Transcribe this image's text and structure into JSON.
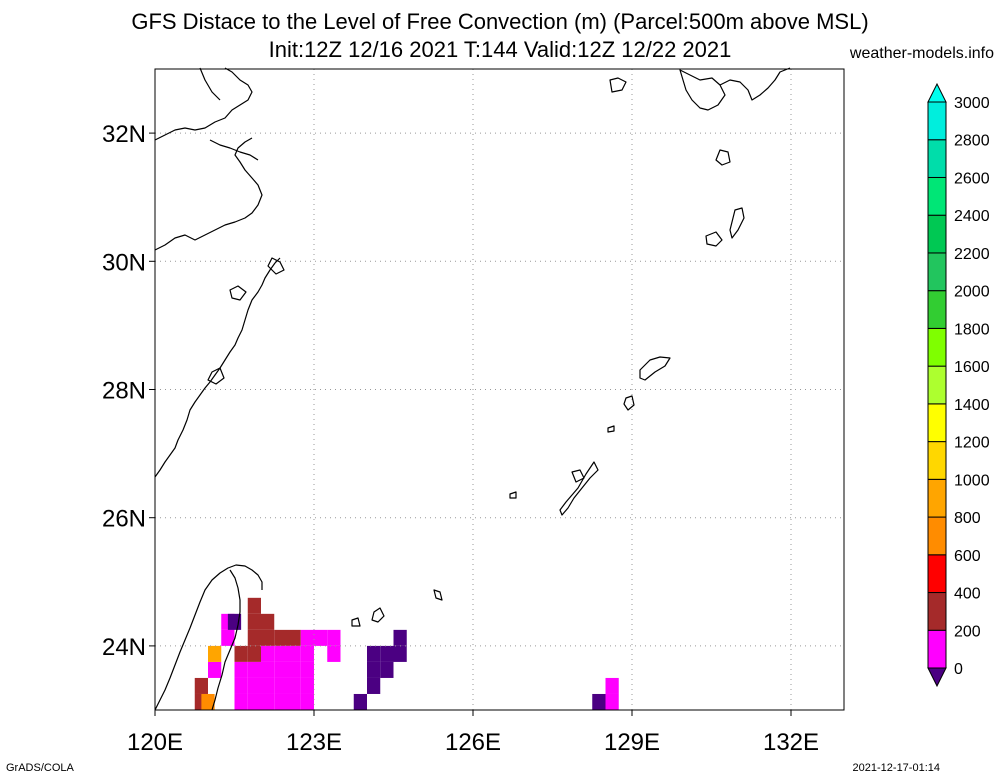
{
  "header": {
    "title_line1": "GFS Distace to the Level of Free Convection (m) (Parcel:500m above MSL)",
    "title_line2": "Init:12Z 12/16 2021 T:144 Valid:12Z 12/22 2021",
    "site": "weather-models.info"
  },
  "footer": {
    "left": "GrADS/COLA",
    "right": "2021-12-17-01:14"
  },
  "map": {
    "lon_range": [
      120,
      133
    ],
    "lat_range": [
      23,
      33
    ],
    "lon_ticks": [
      {
        "value": 120,
        "label": "120E"
      },
      {
        "value": 123,
        "label": "123E"
      },
      {
        "value": 126,
        "label": "126E"
      },
      {
        "value": 129,
        "label": "129E"
      },
      {
        "value": 132,
        "label": "132E"
      }
    ],
    "lat_ticks": [
      {
        "value": 24,
        "label": "24N"
      },
      {
        "value": 26,
        "label": "26N"
      },
      {
        "value": 28,
        "label": "28N"
      },
      {
        "value": 30,
        "label": "30N"
      },
      {
        "value": 32,
        "label": "32N"
      }
    ],
    "grid": "dotted"
  },
  "colorbar": {
    "levels": [
      "0",
      "200",
      "400",
      "600",
      "800",
      "1000",
      "1200",
      "1400",
      "1600",
      "1800",
      "2000",
      "2200",
      "2400",
      "2600",
      "2800",
      "3000"
    ],
    "colors": [
      "#4b0082",
      "#ff00ff",
      "#a52a2a",
      "#ff0000",
      "#ff8c00",
      "#ffa500",
      "#ffd700",
      "#ffff00",
      "#adff2f",
      "#7fff00",
      "#32cd32",
      "#22c55e",
      "#00c853",
      "#00e676",
      "#00ddaa",
      "#00eedd",
      "#00ffee"
    ]
  },
  "grid_data": {
    "cell_size_deg": 0.25,
    "cells": [
      {
        "lon": 120.75,
        "lat": 23.25,
        "color": "#a52a2a"
      },
      {
        "lon": 120.75,
        "lat": 23.0,
        "color": "#a52a2a"
      },
      {
        "lon": 120.875,
        "lat": 23.0,
        "color": "#ff8c00"
      },
      {
        "lon": 121.0,
        "lat": 23.5,
        "color": "#ff00ff"
      },
      {
        "lon": 121.0,
        "lat": 23.75,
        "color": "#ffa500"
      },
      {
        "lon": 121.25,
        "lat": 24.25,
        "color": "#ff00ff"
      },
      {
        "lon": 121.25,
        "lat": 24.0,
        "color": "#ff00ff"
      },
      {
        "lon": 121.375,
        "lat": 24.25,
        "color": "#4b0082"
      },
      {
        "lon": 121.75,
        "lat": 24.5,
        "color": "#a52a2a"
      },
      {
        "lon": 121.75,
        "lat": 24.25,
        "color": "#a52a2a"
      },
      {
        "lon": 122.0,
        "lat": 24.25,
        "color": "#a52a2a"
      },
      {
        "lon": 122.0,
        "lat": 24.0,
        "color": "#a52a2a"
      },
      {
        "lon": 122.25,
        "lat": 24.0,
        "color": "#a52a2a"
      },
      {
        "lon": 122.5,
        "lat": 24.0,
        "color": "#a52a2a"
      },
      {
        "lon": 121.75,
        "lat": 24.0,
        "color": "#a52a2a"
      },
      {
        "lon": 121.5,
        "lat": 23.75,
        "color": "#a52a2a"
      },
      {
        "lon": 121.75,
        "lat": 23.75,
        "color": "#a52a2a"
      },
      {
        "lon": 122.0,
        "lat": 23.75,
        "color": "#ff00ff"
      },
      {
        "lon": 122.25,
        "lat": 23.75,
        "color": "#ff00ff"
      },
      {
        "lon": 122.5,
        "lat": 23.75,
        "color": "#ff00ff"
      },
      {
        "lon": 122.75,
        "lat": 23.75,
        "color": "#ff00ff"
      },
      {
        "lon": 122.75,
        "lat": 24.0,
        "color": "#ff00ff"
      },
      {
        "lon": 123.0,
        "lat": 24.0,
        "color": "#ff00ff"
      },
      {
        "lon": 123.25,
        "lat": 24.0,
        "color": "#ff00ff"
      },
      {
        "lon": 123.25,
        "lat": 23.75,
        "color": "#ff00ff"
      },
      {
        "lon": 121.5,
        "lat": 23.5,
        "color": "#ff00ff"
      },
      {
        "lon": 121.75,
        "lat": 23.5,
        "color": "#ff00ff"
      },
      {
        "lon": 122.0,
        "lat": 23.5,
        "color": "#ff00ff"
      },
      {
        "lon": 122.25,
        "lat": 23.5,
        "color": "#ff00ff"
      },
      {
        "lon": 122.5,
        "lat": 23.5,
        "color": "#ff00ff"
      },
      {
        "lon": 122.75,
        "lat": 23.5,
        "color": "#ff00ff"
      },
      {
        "lon": 121.5,
        "lat": 23.25,
        "color": "#ff00ff"
      },
      {
        "lon": 121.75,
        "lat": 23.25,
        "color": "#ff00ff"
      },
      {
        "lon": 122.0,
        "lat": 23.25,
        "color": "#ff00ff"
      },
      {
        "lon": 122.25,
        "lat": 23.25,
        "color": "#ff00ff"
      },
      {
        "lon": 122.5,
        "lat": 23.25,
        "color": "#ff00ff"
      },
      {
        "lon": 122.75,
        "lat": 23.25,
        "color": "#ff00ff"
      },
      {
        "lon": 121.5,
        "lat": 23.0,
        "color": "#ff00ff"
      },
      {
        "lon": 121.75,
        "lat": 23.0,
        "color": "#ff00ff"
      },
      {
        "lon": 122.0,
        "lat": 23.0,
        "color": "#ff00ff"
      },
      {
        "lon": 122.25,
        "lat": 23.0,
        "color": "#ff00ff"
      },
      {
        "lon": 122.5,
        "lat": 23.0,
        "color": "#ff00ff"
      },
      {
        "lon": 122.75,
        "lat": 23.0,
        "color": "#ff00ff"
      },
      {
        "lon": 124.0,
        "lat": 23.75,
        "color": "#4b0082"
      },
      {
        "lon": 124.25,
        "lat": 23.75,
        "color": "#4b0082"
      },
      {
        "lon": 124.5,
        "lat": 23.75,
        "color": "#4b0082"
      },
      {
        "lon": 124.5,
        "lat": 24.0,
        "color": "#4b0082"
      },
      {
        "lon": 124.0,
        "lat": 23.5,
        "color": "#4b0082"
      },
      {
        "lon": 124.25,
        "lat": 23.5,
        "color": "#4b0082"
      },
      {
        "lon": 124.0,
        "lat": 23.25,
        "color": "#4b0082"
      },
      {
        "lon": 123.75,
        "lat": 23.0,
        "color": "#4b0082"
      },
      {
        "lon": 128.25,
        "lat": 23.0,
        "color": "#4b0082"
      },
      {
        "lon": 128.5,
        "lat": 23.25,
        "color": "#ff00ff"
      },
      {
        "lon": 128.5,
        "lat": 23.0,
        "color": "#ff00ff"
      }
    ]
  },
  "coastlines": [
    "M 155 477 L 160 470 L 165 462 L 170 455 L 175 448 L 178 440 L 183 430 L 187 420 L 190 410 L 195 402 L 200 395 L 205 388 L 210 382 L 215 375 L 220 368 L 225 360 L 230 352 L 235 345 L 238 338 L 242 330 L 245 320 L 248 310 L 252 300 L 258 292 L 262 285 L 265 278 L 270 270 L 275 263 L 280 258",
    "M 155 250 L 165 245 L 175 238 L 185 235 L 195 240 L 205 235 L 215 230 L 225 225 L 235 222 L 245 218 L 252 213 L 258 205 L 262 195 L 258 185 L 252 178 L 245 170 L 240 162 L 235 155 L 238 148 L 245 142 L 252 138",
    "M 155 140 L 165 135 L 175 130 L 185 128 L 195 130 L 205 128 L 215 122 L 225 118 L 232 110 L 240 105 L 248 100 L 252 92 L 248 85 L 240 80 L 232 72 L 225 68",
    "M 210 140 L 220 145 L 230 148 L 240 152 L 250 155 L 258 160",
    "M 200 68 L 205 80 L 212 92 L 220 100",
    "M 155 710 L 160 700 L 165 690 L 170 678 L 175 665 L 180 652 L 185 640 L 190 628 L 195 615 L 200 602 L 205 590 L 212 580 L 220 573 L 228 568 L 236 565 L 245 566 L 252 570 L 258 575 L 262 582 L 262 590",
    "M 230 570 L 235 578 L 238 588 L 240 600 L 240 612 L 238 625 L 235 638 L 230 650 L 225 662 L 222 675 L 218 688 L 215 700 L 212 710",
    "M 610 80 L 618 78 L 626 82 L 622 90 L 612 92 Z",
    "M 680 70 L 690 75 L 700 80 L 712 78 L 720 85 L 725 95 L 718 105 L 708 110 L 700 108 L 692 100 L 686 90 Z",
    "M 720 85 L 730 80 L 740 82 L 748 90 L 752 100 L 760 95 L 768 88 L 775 80 L 780 72 L 790 68",
    "M 720 150 L 728 152 L 730 162 L 722 165 L 716 160 Z",
    "M 735 210 L 742 208 L 744 218 L 738 230 L 732 238 L 730 230 Z",
    "M 706 236 L 716 232 L 722 240 L 716 246 L 707 244 Z",
    "M 640 370 L 650 360 L 660 357 L 670 358 L 665 366 L 655 372 L 645 380 L 640 378 Z",
    "M 626 398 L 632 396 L 634 405 L 628 410 L 624 404 Z",
    "M 608 428 L 614 426 L 614 431 L 608 432 Z",
    "M 560 510 L 566 502 L 572 495 L 578 488 L 586 474 L 594 462 L 598 470 L 590 478 L 582 488 L 574 498 L 568 508 L 562 515 Z",
    "M 572 472 L 580 470 L 584 478 L 576 482 Z",
    "M 510 494 L 516 492 L 516 498 L 510 498 Z",
    "M 434 590 L 440 592 L 442 600 L 436 598 Z",
    "M 374 612 L 380 608 L 384 616 L 378 622 L 372 620 Z",
    "M 352 620 L 358 618 L 360 626 L 352 626 Z",
    "M 272 258 L 280 262 L 284 270 L 276 274 L 268 266 Z",
    "M 230 290 L 238 286 L 246 292 L 240 300 L 232 298 Z",
    "M 212 372 L 220 368 L 224 378 L 216 384 L 208 380 Z"
  ]
}
